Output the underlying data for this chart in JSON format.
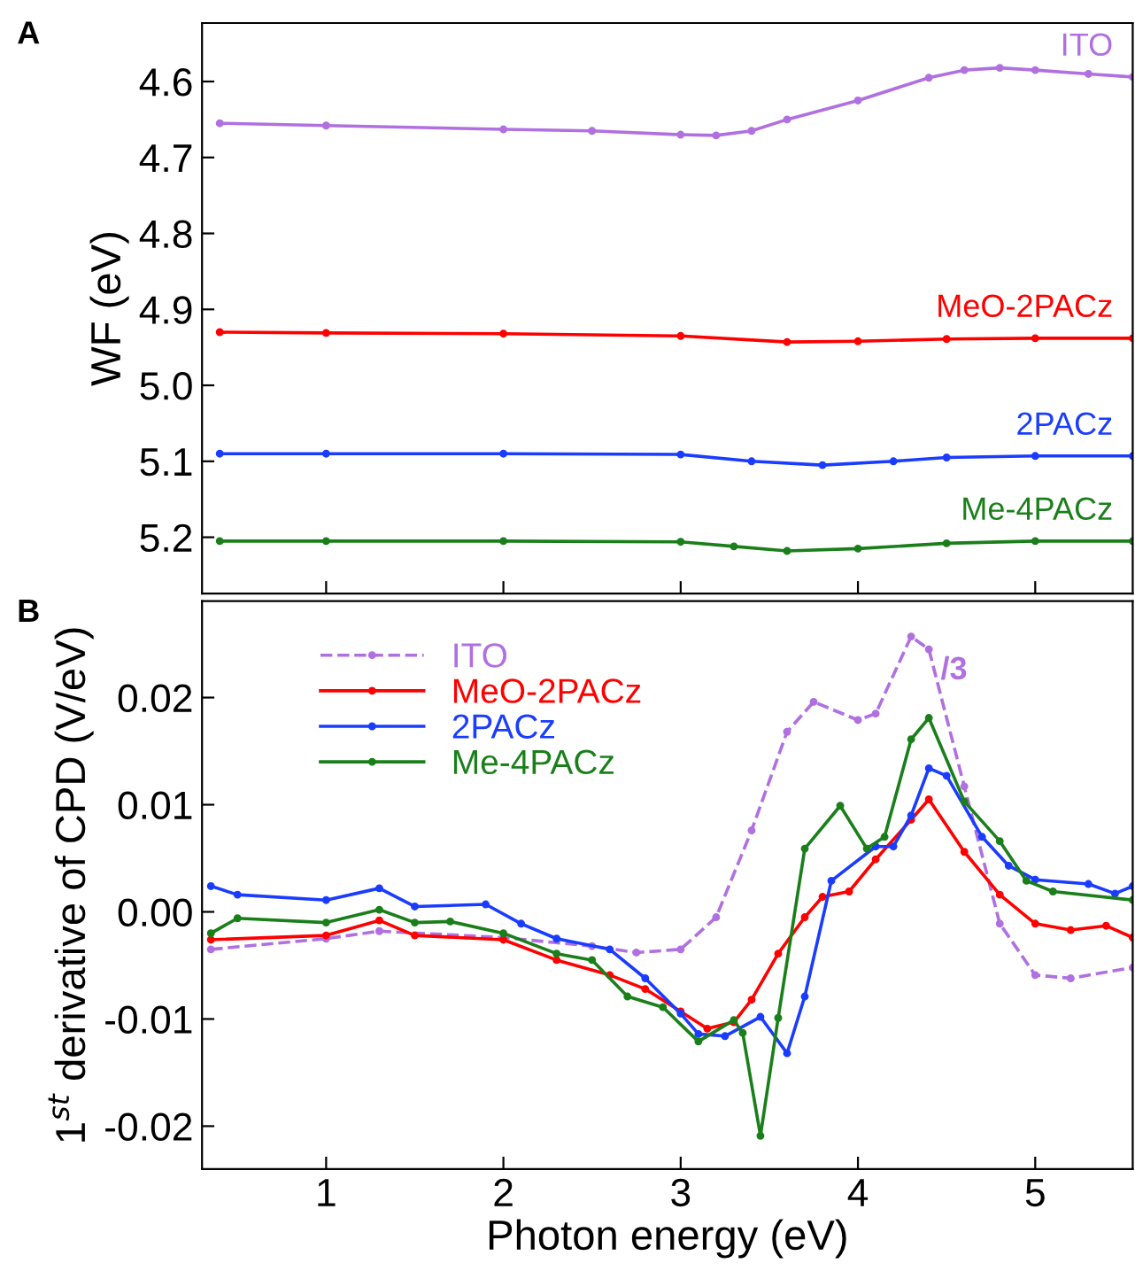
{
  "chart_data": [
    {
      "type": "line",
      "ylabel": "WF (eV)",
      "annotations": [
        "A"
      ],
      "xlim": [
        0.3,
        5.55
      ],
      "xticks": [
        1,
        2,
        3,
        4,
        5
      ],
      "ylim": [
        5.274,
        4.523
      ],
      "yticks": [
        4.6,
        4.7,
        4.8,
        4.9,
        {
          "value": 5.0,
          "label": "5.0"
        },
        5.1,
        5.2
      ],
      "tick_labels": "y",
      "legend": false,
      "grid": false,
      "marker": "circle",
      "line_style": "solid",
      "series": [
        {
          "name": "ITO",
          "color": "#b070e0",
          "x": [
            0.4,
            1,
            2,
            2.5,
            3,
            3.2,
            3.4,
            3.6,
            4,
            4.4,
            4.6,
            4.8,
            5,
            5.3,
            5.55
          ],
          "values": [
            4.655,
            4.658,
            4.663,
            4.665,
            4.67,
            4.671,
            4.665,
            4.65,
            4.625,
            4.595,
            4.585,
            4.582,
            4.585,
            4.59,
            4.594
          ]
        },
        {
          "name": "MeO-2PACz",
          "color": "#ff0000",
          "x": [
            0.4,
            1,
            2,
            3,
            3.6,
            4,
            4.5,
            5,
            5.55
          ],
          "values": [
            4.93,
            4.931,
            4.932,
            4.935,
            4.943,
            4.942,
            4.939,
            4.938,
            4.938
          ]
        },
        {
          "name": "2PACz",
          "color": "#1a3cff",
          "x": [
            0.4,
            1,
            2,
            3,
            3.4,
            3.8,
            4.2,
            4.5,
            5,
            5.55
          ],
          "values": [
            5.09,
            5.09,
            5.09,
            5.091,
            5.1,
            5.105,
            5.1,
            5.095,
            5.093,
            5.093
          ]
        },
        {
          "name": "Me-4PACz",
          "color": "#1a7f1a",
          "x": [
            0.4,
            1,
            2,
            3,
            3.3,
            3.6,
            4,
            4.5,
            5,
            5.55
          ],
          "values": [
            5.205,
            5.205,
            5.205,
            5.206,
            5.212,
            5.218,
            5.215,
            5.208,
            5.205,
            5.205
          ]
        }
      ]
    },
    {
      "type": "line",
      "xlabel": "Photon energy (eV)",
      "ylabel": "1$^{st}$ derivative of CPD (V/eV)",
      "annotations": [
        "B",
        "/3"
      ],
      "xlim": [
        0.3,
        5.55
      ],
      "xticks": [
        1,
        2,
        3,
        4,
        5
      ],
      "ylim": [
        -0.024,
        0.029
      ],
      "yticks": [
        {
          "value": -0.02,
          "label": "-0.02"
        },
        {
          "value": -0.01,
          "label": "-0.01"
        },
        {
          "value": 0,
          "label": "0.00"
        },
        {
          "value": 0.01,
          "label": "0.01"
        },
        {
          "value": 0.02,
          "label": "0.02"
        }
      ],
      "legend": "top",
      "grid": false,
      "marker": "circle",
      "series": [
        {
          "name": "ITO",
          "color": "#b070e0",
          "line_style": "dashed",
          "x": [
            0.35,
            1,
            1.3,
            2,
            2.5,
            2.75,
            3,
            3.2,
            3.4,
            3.6,
            3.75,
            4,
            4.1,
            4.3,
            4.4,
            4.6,
            4.8,
            5,
            5.2,
            5.55
          ],
          "values": [
            -0.0035,
            -0.0025,
            -0.0018,
            -0.0024,
            -0.0032,
            -0.0038,
            -0.0035,
            -0.0005,
            0.0076,
            0.0168,
            0.0196,
            0.0179,
            0.0185,
            0.0257,
            0.0245,
            0.0117,
            -0.0011,
            -0.0059,
            -0.0062,
            -0.0052
          ]
        },
        {
          "name": "MeO-2PACz",
          "color": "#ff0000",
          "line_style": "solid",
          "x": [
            0.35,
            1,
            1.3,
            1.5,
            2,
            2.3,
            2.6,
            2.8,
            3,
            3.15,
            3.3,
            3.4,
            3.55,
            3.7,
            3.8,
            3.95,
            4.1,
            4.3,
            4.4,
            4.6,
            4.8,
            5,
            5.2,
            5.4,
            5.55
          ],
          "values": [
            -0.0026,
            -0.0022,
            -0.0008,
            -0.0022,
            -0.0026,
            -0.0045,
            -0.0059,
            -0.0072,
            -0.0093,
            -0.0109,
            -0.0103,
            -0.0082,
            -0.0039,
            -0.0005,
            0.0014,
            0.0019,
            0.0049,
            0.0086,
            0.0105,
            0.0056,
            0.0016,
            -0.0011,
            -0.0017,
            -0.0013,
            -0.0024
          ]
        },
        {
          "name": "2PACz",
          "color": "#1a3cff",
          "line_style": "solid",
          "x": [
            0.35,
            0.5,
            1,
            1.3,
            1.5,
            1.9,
            2.1,
            2.3,
            2.6,
            2.8,
            3,
            3.1,
            3.25,
            3.45,
            3.6,
            3.7,
            3.85,
            4.1,
            4.2,
            4.3,
            4.4,
            4.5,
            4.7,
            4.85,
            5,
            5.3,
            5.45,
            5.55
          ],
          "values": [
            0.0024,
            0.0016,
            0.0011,
            0.0022,
            0.0005,
            0.0007,
            -0.0011,
            -0.0025,
            -0.0035,
            -0.0062,
            -0.0095,
            -0.0114,
            -0.0116,
            -0.0098,
            -0.0132,
            -0.0079,
            0.0029,
            0.0061,
            0.0061,
            0.009,
            0.0134,
            0.0127,
            0.007,
            0.0043,
            0.003,
            0.0026,
            0.0017,
            0.0024
          ]
        },
        {
          "name": "Me-4PACz",
          "color": "#1a7f1a",
          "line_style": "solid",
          "x": [
            0.35,
            0.5,
            1,
            1.3,
            1.5,
            1.7,
            2,
            2.3,
            2.5,
            2.7,
            2.9,
            3.1,
            3.3,
            3.35,
            3.45,
            3.55,
            3.7,
            3.9,
            4.05,
            4.15,
            4.3,
            4.4,
            4.6,
            4.8,
            4.95,
            5.1,
            5.55
          ],
          "values": [
            -0.002,
            -0.0006,
            -0.001,
            0.0002,
            -0.001,
            -0.0009,
            -0.002,
            -0.0039,
            -0.0045,
            -0.0079,
            -0.0089,
            -0.0121,
            -0.0101,
            -0.0113,
            -0.0209,
            -0.0099,
            0.0059,
            0.0099,
            0.0059,
            0.007,
            0.0161,
            0.0181,
            0.0103,
            0.0066,
            0.0029,
            0.0019,
            0.0011
          ]
        }
      ]
    }
  ]
}
